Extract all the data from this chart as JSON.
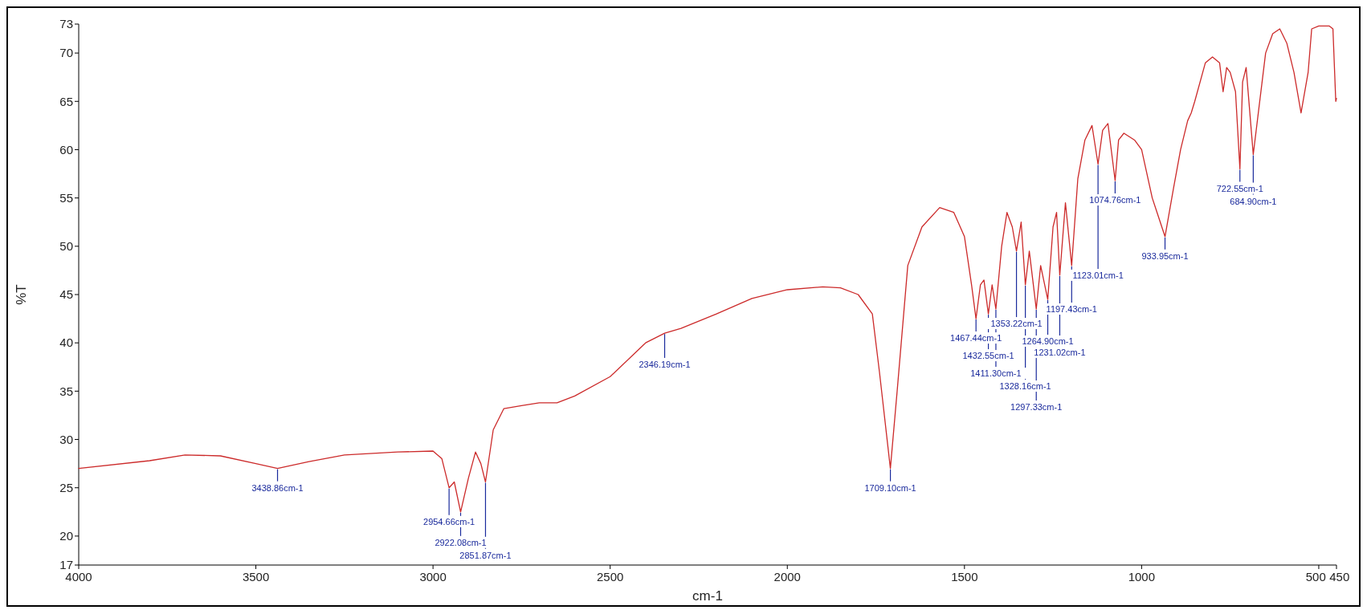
{
  "chart_data": {
    "type": "line",
    "xlabel": "cm-1",
    "ylabel": "%T",
    "xlim": [
      4000,
      450
    ],
    "ylim": [
      17,
      73
    ],
    "xticks": [
      4000,
      3500,
      3000,
      2500,
      2000,
      1500,
      1000,
      500,
      450
    ],
    "yticks": [
      17,
      20,
      25,
      30,
      35,
      40,
      45,
      50,
      55,
      60,
      65,
      70,
      73
    ],
    "grid": false,
    "marker": "none",
    "line_style": "solid",
    "series": [
      {
        "color": "#cc2a2a",
        "x": [
          4000,
          3800,
          3700,
          3600,
          3500,
          3438.86,
          3350,
          3250,
          3100,
          3000,
          2975,
          2954.66,
          2940,
          2922.08,
          2900,
          2880,
          2865,
          2851.87,
          2830,
          2800,
          2750,
          2700,
          2650,
          2600,
          2500,
          2400,
          2346.19,
          2300,
          2200,
          2100,
          2000,
          1900,
          1850,
          1800,
          1760,
          1740,
          1709.1,
          1690,
          1660,
          1620,
          1570,
          1530,
          1500,
          1480,
          1467.44,
          1455,
          1445,
          1432.55,
          1422,
          1411.3,
          1395,
          1380,
          1365,
          1353.22,
          1340,
          1328.16,
          1317,
          1297.33,
          1285,
          1264.9,
          1250,
          1240,
          1231.02,
          1215,
          1197.43,
          1180,
          1160,
          1140,
          1123.01,
          1110,
          1095,
          1074.76,
          1065,
          1050,
          1020,
          1000,
          970,
          933.95,
          910,
          890,
          870,
          860,
          850,
          820,
          800,
          780,
          770,
          760,
          750,
          735,
          722.55,
          715,
          705,
          684.9,
          670,
          650,
          630,
          610,
          590,
          570,
          550,
          530,
          520,
          500,
          470,
          460,
          452,
          450
        ],
        "values": [
          27.0,
          27.8,
          28.4,
          28.3,
          27.5,
          27.0,
          27.7,
          28.4,
          28.7,
          28.8,
          28.0,
          25.0,
          25.6,
          22.5,
          26,
          28.7,
          27.5,
          25.6,
          31,
          33.2,
          33.5,
          33.8,
          33.8,
          34.5,
          36.5,
          40,
          41,
          41.5,
          43,
          44.6,
          45.5,
          45.8,
          45.7,
          45,
          43,
          37,
          27.0,
          35,
          48,
          52,
          54,
          53.5,
          51,
          46,
          42.5,
          46,
          46.5,
          43,
          46,
          43.5,
          50,
          53.5,
          52,
          49.5,
          52.5,
          46,
          49.5,
          43.5,
          48,
          44.5,
          52,
          53.5,
          47,
          54.5,
          48,
          57,
          61,
          62.5,
          58.5,
          62,
          62.7,
          56.8,
          61,
          61.7,
          61,
          60,
          55,
          51,
          56,
          60,
          63,
          63.8,
          65,
          69,
          69.6,
          69,
          66,
          68.5,
          68,
          66,
          58,
          67,
          68.5,
          59.5,
          64,
          70,
          72,
          72.5,
          71,
          68,
          63.8,
          68,
          72.5,
          72.8,
          72.8,
          72.5,
          65,
          65.3
        ]
      }
    ],
    "annotations": [
      {
        "text": "3438.86cm-1",
        "x": 3438.86,
        "y": 27.0
      },
      {
        "text": "2954.66cm-1",
        "x": 2954.66,
        "y": 25.0
      },
      {
        "text": "2922.08cm-1",
        "x": 2922.08,
        "y": 22.5
      },
      {
        "text": "2851.87cm-1",
        "x": 2851.87,
        "y": 25.6
      },
      {
        "text": "2346.19cm-1",
        "x": 2346.19,
        "y": 41
      },
      {
        "text": "1709.10cm-1",
        "x": 1709.1,
        "y": 27.0
      },
      {
        "text": "1467.44cm-1",
        "x": 1467.44,
        "y": 42.5
      },
      {
        "text": "1432.55cm-1",
        "x": 1432.55,
        "y": 43
      },
      {
        "text": "1411.30cm-1",
        "x": 1411.3,
        "y": 43.5
      },
      {
        "text": "1353.22cm-1",
        "x": 1353.22,
        "y": 49.5
      },
      {
        "text": "1328.16cm-1",
        "x": 1328.16,
        "y": 46
      },
      {
        "text": "1297.33cm-1",
        "x": 1297.33,
        "y": 43.5
      },
      {
        "text": "1264.90cm-1",
        "x": 1264.9,
        "y": 44.5
      },
      {
        "text": "1231.02cm-1",
        "x": 1231.02,
        "y": 47
      },
      {
        "text": "1197.43cm-1",
        "x": 1197.43,
        "y": 48
      },
      {
        "text": "1123.01cm-1",
        "x": 1123.01,
        "y": 58.5
      },
      {
        "text": "1074.76cm-1",
        "x": 1074.76,
        "y": 56.8
      },
      {
        "text": "933.95cm-1",
        "x": 933.95,
        "y": 51
      },
      {
        "text": "722.55cm-1",
        "x": 722.55,
        "y": 58
      },
      {
        "text": "684.90cm-1",
        "x": 684.9,
        "y": 59.5
      }
    ]
  }
}
